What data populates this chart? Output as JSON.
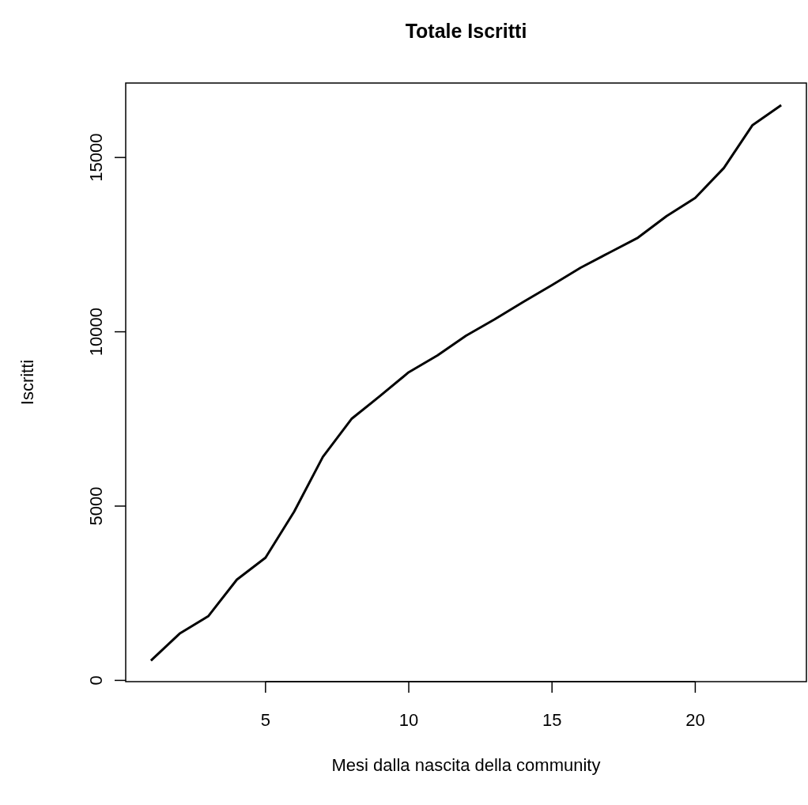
{
  "chart_data": {
    "type": "line",
    "title": "Totale Iscritti",
    "xlabel": "Mesi dalla nascita della community",
    "ylabel": "Iscritti",
    "x": [
      1,
      2,
      3,
      4,
      5,
      6,
      7,
      8,
      9,
      10,
      11,
      12,
      13,
      14,
      15,
      16,
      17,
      18,
      19,
      20,
      21,
      22,
      23
    ],
    "series": [
      {
        "color": "#000000",
        "values": [
          570,
          1340,
          1840,
          2890,
          3520,
          4840,
          6410,
          7500,
          8160,
          8840,
          9320,
          9890,
          10360,
          10860,
          11340,
          11840,
          12270,
          12700,
          13320,
          13840,
          14700,
          15930,
          16500
        ]
      }
    ],
    "xlim": [
      0.12,
      23.88
    ],
    "ylim": [
      -36,
      17136
    ],
    "xticks": [
      5,
      10,
      15,
      20
    ],
    "yticks": [
      0,
      5000,
      10000,
      15000
    ],
    "grid": false,
    "marker": "none",
    "line_style": "solid"
  }
}
